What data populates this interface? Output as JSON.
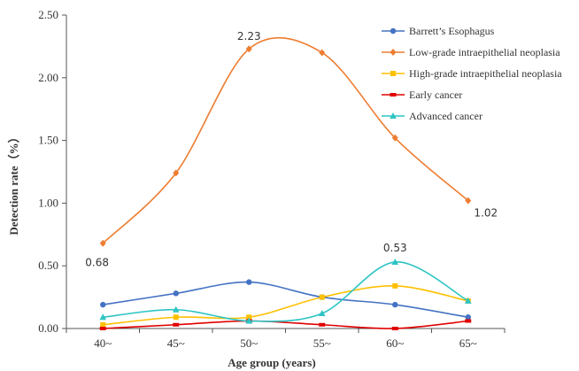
{
  "chart_data": {
    "type": "line",
    "xlabel": "Age group (years)",
    "ylabel": "Detection rate（%）",
    "categories": [
      "40~",
      "45~",
      "50~",
      "55~",
      "60~",
      "65~"
    ],
    "ylim": [
      0,
      2.5
    ],
    "yticks": [
      "0.00",
      "0.50",
      "1.00",
      "1.50",
      "2.00",
      "2.50"
    ],
    "legend_position": "top-right",
    "smooth": true,
    "series": [
      {
        "name": "Barrett’s Esophagus",
        "color": "#4472C4",
        "marker": "circle",
        "values": [
          0.19,
          0.28,
          0.37,
          0.25,
          0.19,
          0.09
        ]
      },
      {
        "name": "Low-grade intraepithelial neoplasia",
        "color": "#ED7D31",
        "marker": "diamond",
        "values": [
          0.68,
          1.24,
          2.23,
          2.2,
          1.52,
          1.02
        ]
      },
      {
        "name": "High-grade intraepithelial neoplasia",
        "color": "#FFC000",
        "marker": "square",
        "values": [
          0.03,
          0.09,
          0.09,
          0.25,
          0.34,
          0.22
        ]
      },
      {
        "name": "Early cancer",
        "color": "#E00000",
        "marker": "dash",
        "values": [
          0.0,
          0.03,
          0.06,
          0.03,
          0.0,
          0.06
        ]
      },
      {
        "name": "Advanced cancer",
        "color": "#2EC4C4",
        "marker": "triangle",
        "values": [
          0.09,
          0.15,
          0.06,
          0.12,
          0.53,
          0.22
        ]
      }
    ],
    "data_labels": [
      "0.68",
      "2.23",
      "1.02",
      "0.53"
    ]
  }
}
